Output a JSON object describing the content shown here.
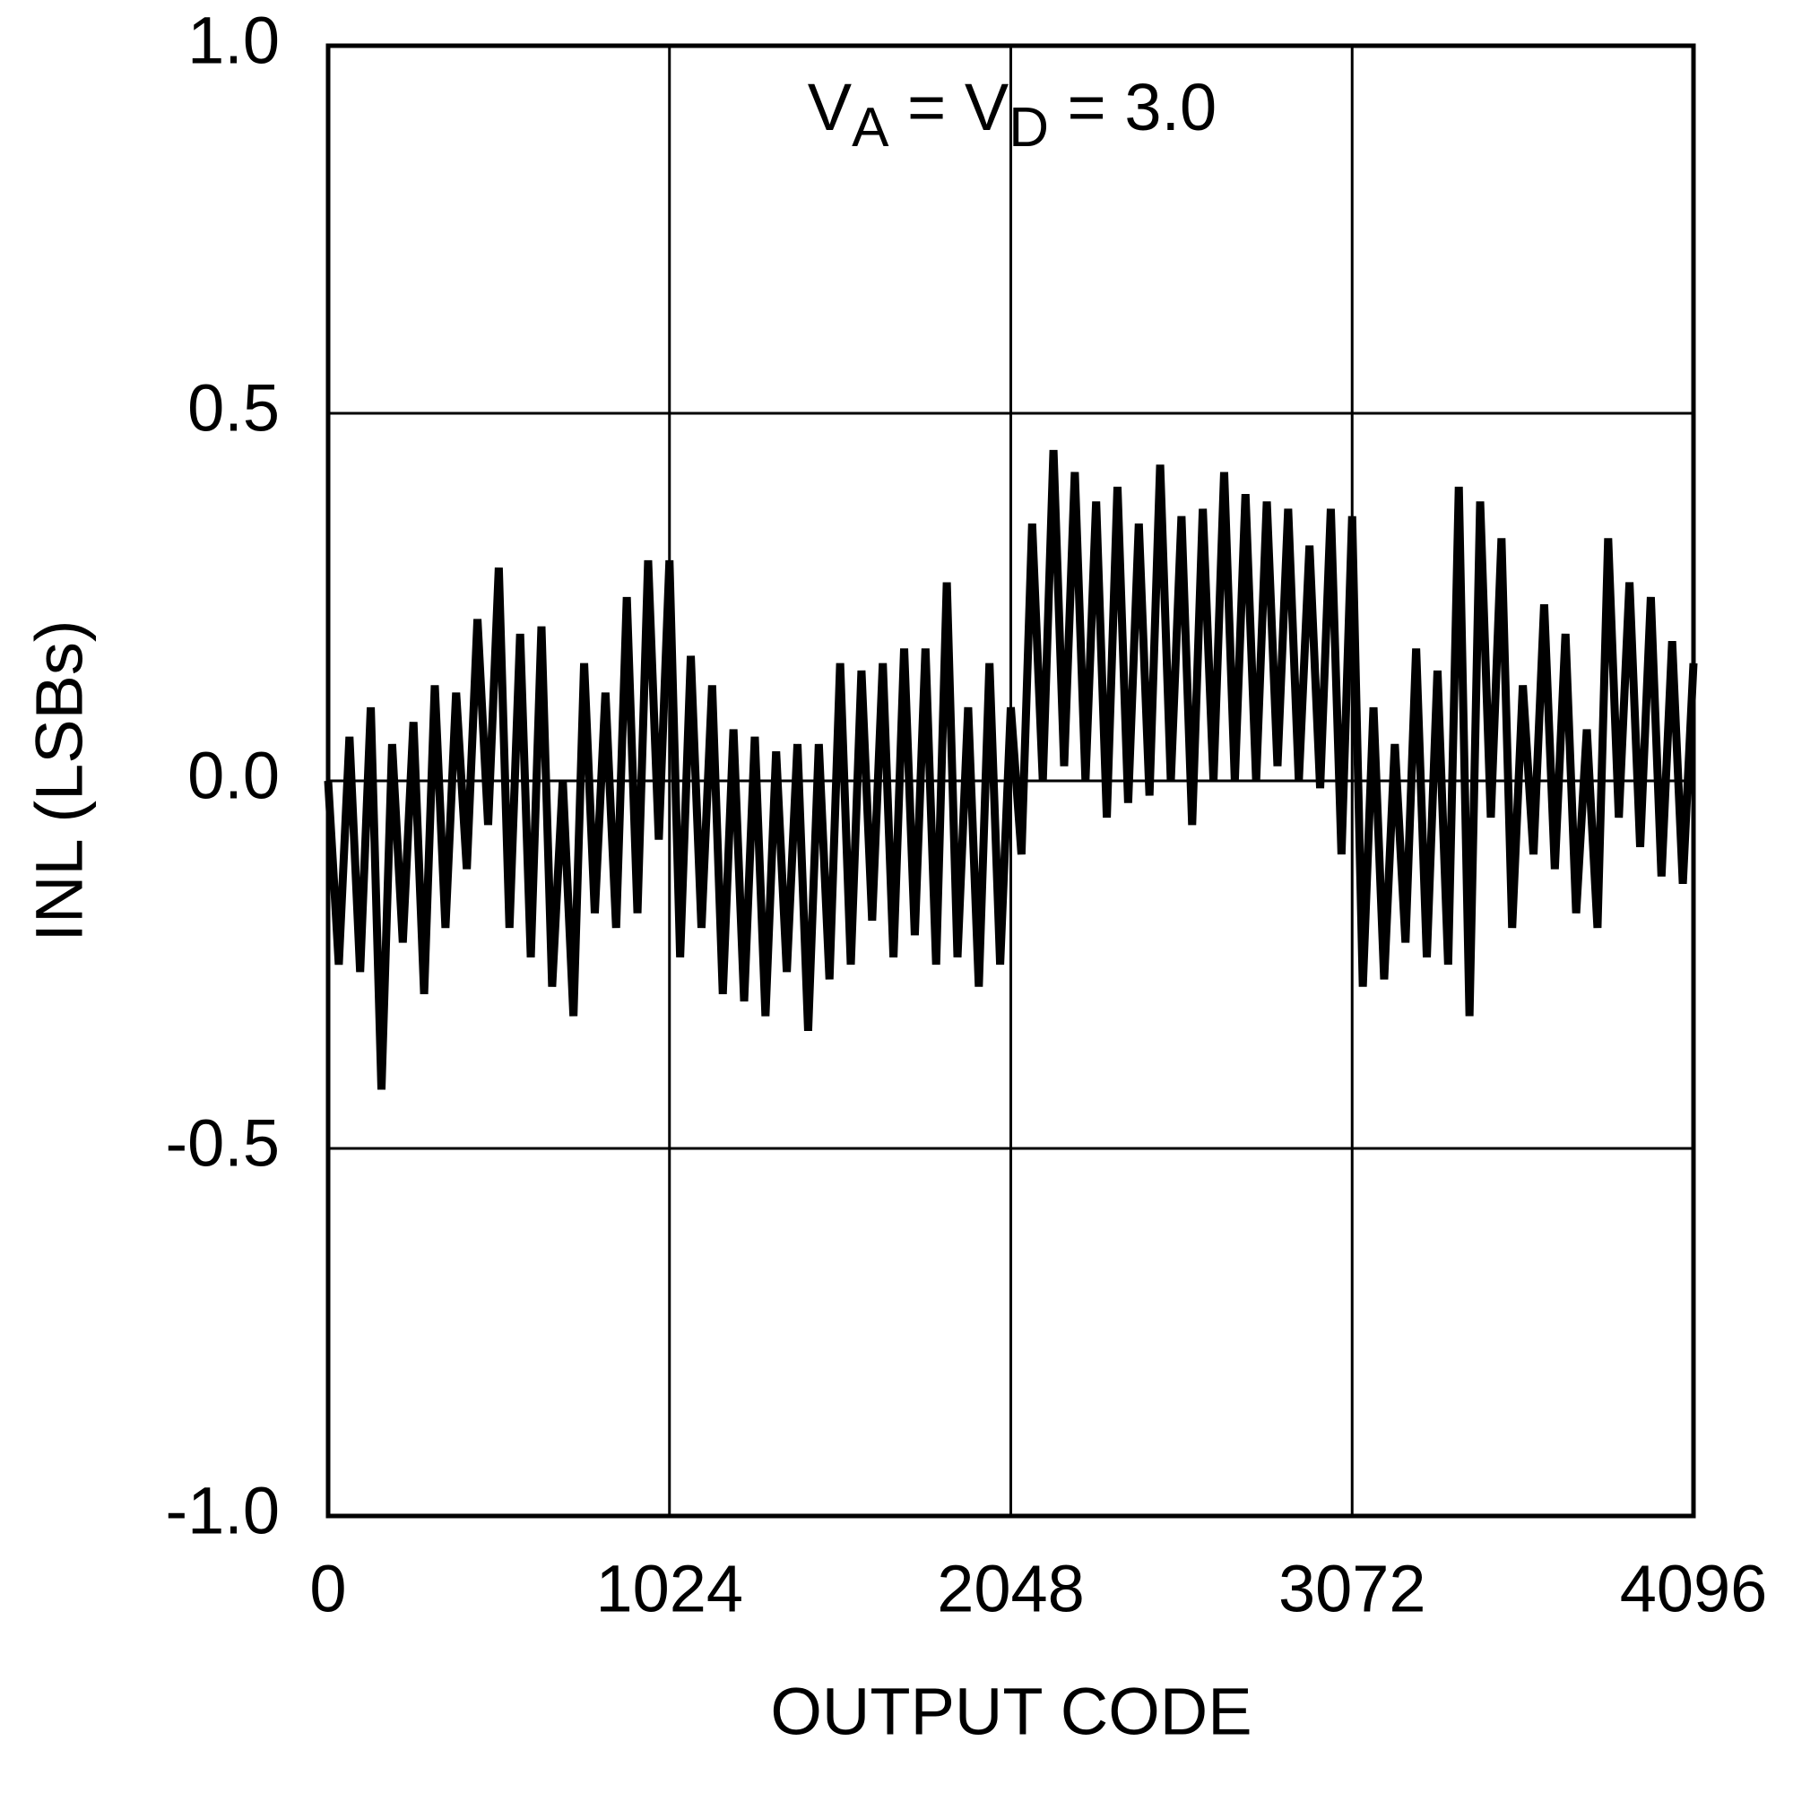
{
  "chart_data": {
    "type": "line",
    "annotation": [
      "V",
      "A",
      " = V",
      "D",
      " = 3.0"
    ],
    "xlabel": "OUTPUT CODE",
    "ylabel": "INL (LSBs)",
    "color": "#000000",
    "grid": true,
    "xlim": [
      0,
      4096
    ],
    "xticks": [
      0,
      1024,
      2048,
      3072,
      4096
    ],
    "ylim": [
      -1,
      1
    ],
    "yticks": [
      {
        "value": -1,
        "label": "-1.0"
      },
      -0.5,
      {
        "value": 0,
        "label": "0.0"
      },
      0.5,
      {
        "value": 1,
        "label": "1.0"
      }
    ],
    "x": [
      0,
      32,
      64,
      96,
      128,
      160,
      192,
      224,
      256,
      288,
      320,
      352,
      384,
      416,
      448,
      480,
      512,
      544,
      576,
      608,
      640,
      672,
      704,
      736,
      768,
      800,
      832,
      864,
      896,
      928,
      960,
      992,
      1024,
      1056,
      1088,
      1120,
      1152,
      1184,
      1216,
      1248,
      1280,
      1312,
      1344,
      1376,
      1408,
      1440,
      1472,
      1504,
      1536,
      1568,
      1600,
      1632,
      1664,
      1696,
      1728,
      1760,
      1792,
      1824,
      1856,
      1888,
      1920,
      1952,
      1984,
      2016,
      2048,
      2080,
      2112,
      2144,
      2176,
      2208,
      2240,
      2272,
      2304,
      2336,
      2368,
      2400,
      2432,
      2464,
      2496,
      2528,
      2560,
      2592,
      2624,
      2656,
      2688,
      2720,
      2752,
      2784,
      2816,
      2848,
      2880,
      2912,
      2944,
      2976,
      3008,
      3040,
      3072,
      3104,
      3136,
      3168,
      3200,
      3232,
      3264,
      3296,
      3328,
      3360,
      3392,
      3424,
      3456,
      3488,
      3520,
      3552,
      3584,
      3616,
      3648,
      3680,
      3712,
      3744,
      3776,
      3808,
      3840,
      3872,
      3904,
      3936,
      3968,
      4000,
      4032,
      4064,
      4096
    ],
    "values": [
      0.0,
      -0.25,
      0.06,
      -0.26,
      0.1,
      -0.42,
      0.05,
      -0.22,
      0.08,
      -0.29,
      0.13,
      -0.2,
      0.12,
      -0.12,
      0.22,
      -0.06,
      0.29,
      -0.2,
      0.2,
      -0.24,
      0.21,
      -0.28,
      0.0,
      -0.32,
      0.16,
      -0.18,
      0.12,
      -0.2,
      0.25,
      -0.18,
      0.3,
      -0.08,
      0.3,
      -0.24,
      0.17,
      -0.2,
      0.13,
      -0.29,
      0.07,
      -0.3,
      0.06,
      -0.32,
      0.04,
      -0.26,
      0.05,
      -0.34,
      0.05,
      -0.27,
      0.16,
      -0.25,
      0.15,
      -0.19,
      0.16,
      -0.24,
      0.18,
      -0.21,
      0.18,
      -0.25,
      0.27,
      -0.24,
      0.1,
      -0.28,
      0.16,
      -0.25,
      0.1,
      -0.1,
      0.35,
      0.0,
      0.45,
      0.02,
      0.42,
      0.0,
      0.38,
      -0.05,
      0.4,
      -0.03,
      0.35,
      -0.02,
      0.43,
      0.0,
      0.36,
      -0.06,
      0.37,
      0.0,
      0.42,
      0.0,
      0.39,
      0.0,
      0.38,
      0.02,
      0.37,
      0.0,
      0.32,
      -0.01,
      0.37,
      -0.1,
      0.36,
      -0.28,
      0.1,
      -0.27,
      0.05,
      -0.22,
      0.18,
      -0.24,
      0.15,
      -0.25,
      0.4,
      -0.32,
      0.38,
      -0.05,
      0.33,
      -0.2,
      0.13,
      -0.1,
      0.24,
      -0.12,
      0.2,
      -0.18,
      0.07,
      -0.2,
      0.33,
      -0.05,
      0.27,
      -0.09,
      0.25,
      -0.13,
      0.19,
      -0.14,
      0.16
    ]
  }
}
